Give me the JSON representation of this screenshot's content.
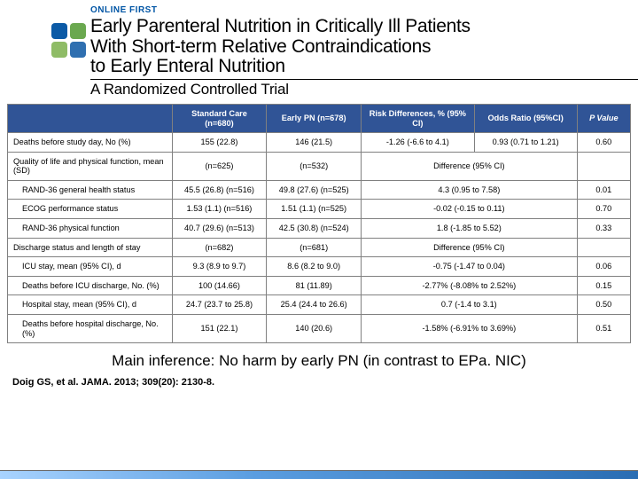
{
  "header": {
    "online_first": "ONLINE FIRST",
    "title_l1": "Early Parenteral Nutrition in Critically Ill Patients",
    "title_l2": "With Short-term Relative Contraindications",
    "title_l3": "to Early Enteral Nutrition",
    "subtitle": "A Randomized Controlled Trial"
  },
  "table": {
    "head": {
      "blank": "",
      "sc": "Standard Care (n=680)",
      "ep": "Early PN (n=678)",
      "rd": "Risk Differences, % (95% CI)",
      "or": "Odds Ratio (95%CI)",
      "p": "P Value"
    },
    "rows": [
      {
        "label": "Deaths before study day, No (%)",
        "sc": "155 (22.8)",
        "ep": "146 (21.5)",
        "rd": "-1.26 (-6.6 to 4.1)",
        "or": "0.93 (0.71 to 1.21)",
        "p": "0.60",
        "indent": false,
        "span": false
      },
      {
        "label": "Quality of life and physical function, mean (SD)",
        "sc": "(n=625)",
        "ep": "(n=532)",
        "rd": "Difference (95% CI)",
        "or": "",
        "p": "",
        "indent": false,
        "span": true
      },
      {
        "label": "RAND-36 general health status",
        "sc": "45.5 (26.8) (n=516)",
        "ep": "49.8 (27.6) (n=525)",
        "rd": "4.3 (0.95 to 7.58)",
        "or": "",
        "p": "0.01",
        "indent": true,
        "span": true
      },
      {
        "label": "ECOG performance status",
        "sc": "1.53 (1.1) (n=516)",
        "ep": "1.51 (1.1) (n=525)",
        "rd": "-0.02 (-0.15 to 0.11)",
        "or": "",
        "p": "0.70",
        "indent": true,
        "span": true
      },
      {
        "label": "RAND-36 physical function",
        "sc": "40.7 (29.6) (n=513)",
        "ep": "42.5 (30.8) (n=524)",
        "rd": "1.8 (-1.85 to 5.52)",
        "or": "",
        "p": "0.33",
        "indent": true,
        "span": true
      },
      {
        "label": "Discharge status and length of stay",
        "sc": "(n=682)",
        "ep": "(n=681)",
        "rd": "Difference (95% CI)",
        "or": "",
        "p": "",
        "indent": false,
        "span": true
      },
      {
        "label": "ICU stay, mean   (95% CI), d",
        "sc": "9.3 (8.9 to 9.7)",
        "ep": "8.6 (8.2 to 9.0)",
        "rd": "-0.75 (-1.47 to 0.04)",
        "or": "",
        "p": "0.06",
        "indent": true,
        "span": true
      },
      {
        "label": "Deaths before ICU discharge, No. (%)",
        "sc": "100 (14.66)",
        "ep": "81 (11.89)",
        "rd": "-2.77% (-8.08% to 2.52%)",
        "or": "",
        "p": "0.15",
        "indent": true,
        "span": true
      },
      {
        "label": "Hospital stay, mean (95% CI), d",
        "sc": "24.7 (23.7 to 25.8)",
        "ep": "25.4 (24.4 to 26.6)",
        "rd": "0.7 (-1.4 to 3.1)",
        "or": "",
        "p": "0.50",
        "indent": true,
        "span": true
      },
      {
        "label": "Deaths before hospital discharge, No. (%)",
        "sc": "151 (22.1)",
        "ep": "140 (20.6)",
        "rd": "-1.58% (-6.91% to 3.69%)",
        "or": "",
        "p": "0.51",
        "indent": true,
        "span": true
      }
    ]
  },
  "inference": "Main inference: No harm by early PN (in contrast to EPa. NIC)",
  "citation": "Doig GS, et al. JAMA. 2013; 309(20): 2130-8.",
  "colors": {
    "header_bg": "#305496",
    "header_fg": "#ffffff",
    "logo1": "#0b5aa6",
    "logo2": "#6aa84f",
    "logo3": "#8fbc66",
    "logo4": "#2f6fb0"
  }
}
